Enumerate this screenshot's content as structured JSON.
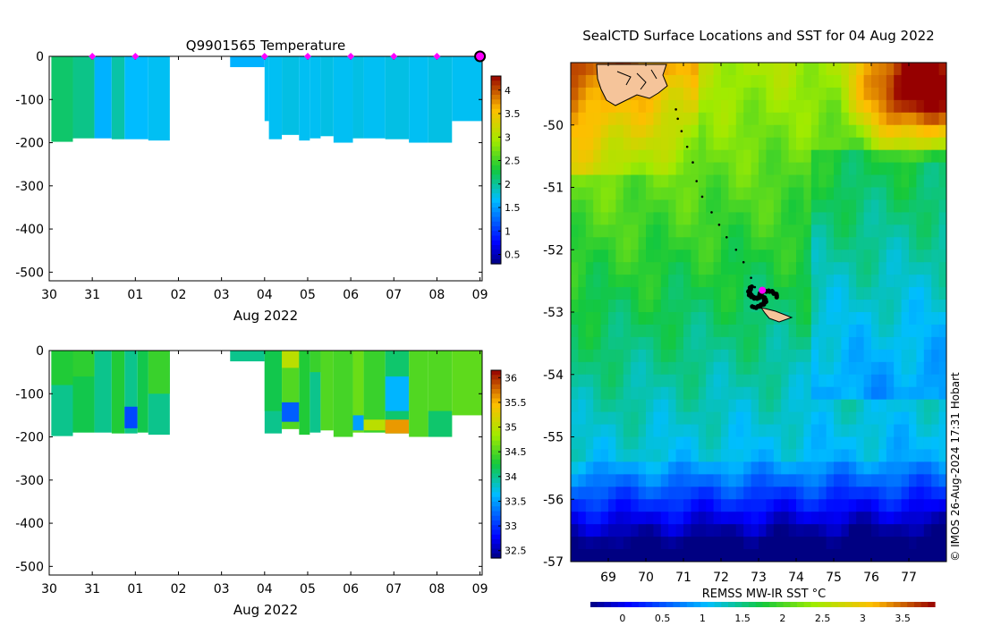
{
  "chart_data": [
    {
      "type": "heatmap",
      "panel": "temperature-profile",
      "title": "Q9901565  Temperature",
      "xlabel": "Aug 2022",
      "ylabel": "",
      "x_ticks": [
        "30",
        "31",
        "01",
        "02",
        "03",
        "04",
        "05",
        "06",
        "07",
        "08",
        "09"
      ],
      "y_ticks": [
        0,
        -100,
        -200,
        -300,
        -400,
        -500
      ],
      "ylim": [
        -520,
        0
      ],
      "xlim_days": [
        0,
        10.05
      ],
      "colorbar": {
        "min": 0.3,
        "max": 4.3,
        "ticks": [
          "0.5",
          "1",
          "1.5",
          "2",
          "2.5",
          "3",
          "3.5",
          "4"
        ],
        "tick_values": [
          0.5,
          1,
          1.5,
          2,
          2.5,
          3,
          3.5,
          4
        ]
      },
      "surface_markers_days": [
        1,
        2,
        5,
        6,
        7,
        8,
        9
      ],
      "current_marker_day": 10,
      "profiles": [
        {
          "x0": 0.05,
          "x1": 0.55,
          "depth": 198,
          "value": 2.15
        },
        {
          "x0": 0.55,
          "x1": 1.05,
          "depth": 190,
          "value": 2.05
        },
        {
          "x0": 1.05,
          "x1": 1.45,
          "depth": 190,
          "value": 1.6
        },
        {
          "x0": 1.45,
          "x1": 1.75,
          "depth": 192,
          "value": 1.95
        },
        {
          "x0": 1.75,
          "x1": 2.3,
          "depth": 192,
          "value": 1.65
        },
        {
          "x0": 2.3,
          "x1": 2.8,
          "depth": 195,
          "value": 1.7
        },
        {
          "x0": 4.2,
          "x1": 5.0,
          "depth": 25,
          "value": 1.6
        },
        {
          "x0": 5.0,
          "x1": 5.1,
          "depth": 150,
          "value": 1.7
        },
        {
          "x0": 5.1,
          "x1": 5.4,
          "depth": 192,
          "value": 1.7
        },
        {
          "x0": 5.4,
          "x1": 5.8,
          "depth": 182,
          "value": 1.75
        },
        {
          "x0": 5.8,
          "x1": 6.05,
          "depth": 195,
          "value": 1.7
        },
        {
          "x0": 6.05,
          "x1": 6.3,
          "depth": 190,
          "value": 1.7
        },
        {
          "x0": 6.3,
          "x1": 6.6,
          "depth": 185,
          "value": 1.75
        },
        {
          "x0": 6.6,
          "x1": 7.05,
          "depth": 200,
          "value": 1.7
        },
        {
          "x0": 7.05,
          "x1": 7.3,
          "depth": 190,
          "value": 1.75
        },
        {
          "x0": 7.3,
          "x1": 7.8,
          "depth": 190,
          "value": 1.7
        },
        {
          "x0": 7.8,
          "x1": 8.35,
          "depth": 192,
          "value": 1.75
        },
        {
          "x0": 8.35,
          "x1": 8.8,
          "depth": 200,
          "value": 1.7
        },
        {
          "x0": 8.8,
          "x1": 9.35,
          "depth": 200,
          "value": 1.75
        },
        {
          "x0": 9.35,
          "x1": 10.05,
          "depth": 150,
          "value": 1.7
        }
      ]
    },
    {
      "type": "heatmap",
      "panel": "salinity-profile",
      "title": "",
      "xlabel": "Aug 2022",
      "ylabel": "",
      "x_ticks": [
        "30",
        "31",
        "01",
        "02",
        "03",
        "04",
        "05",
        "06",
        "07",
        "08",
        "09"
      ],
      "y_ticks": [
        0,
        -100,
        -200,
        -300,
        -400,
        -500
      ],
      "ylim": [
        -520,
        0
      ],
      "xlim_days": [
        0,
        10.05
      ],
      "colorbar": {
        "min": 32.35,
        "max": 36.15,
        "ticks": [
          "32.5",
          "33",
          "33.5",
          "34",
          "34.5",
          "35",
          "35.5",
          "36"
        ],
        "tick_values": [
          32.5,
          33,
          33.5,
          34,
          34.5,
          35,
          35.5,
          36
        ]
      },
      "profiles": [
        {
          "x0": 0.05,
          "x1": 0.55,
          "depth": 198,
          "value": 34.1,
          "layers": [
            {
              "d0": 0,
              "d1": 80,
              "v": 34.3
            },
            {
              "d0": 80,
              "d1": 198,
              "v": 34.0
            }
          ]
        },
        {
          "x0": 0.55,
          "x1": 1.05,
          "depth": 190,
          "value": 34.2,
          "layers": [
            {
              "d0": 0,
              "d1": 60,
              "v": 34.35
            }
          ]
        },
        {
          "x0": 1.05,
          "x1": 1.45,
          "depth": 190,
          "value": 34.0
        },
        {
          "x0": 1.45,
          "x1": 1.75,
          "depth": 192,
          "value": 34.3
        },
        {
          "x0": 1.75,
          "x1": 2.05,
          "depth": 192,
          "value": 34.0,
          "layers": [
            {
              "d0": 130,
              "d1": 180,
              "v": 33.1
            }
          ]
        },
        {
          "x0": 2.05,
          "x1": 2.3,
          "depth": 190,
          "value": 34.2
        },
        {
          "x0": 2.3,
          "x1": 2.8,
          "depth": 195,
          "value": 34.0,
          "layers": [
            {
              "d0": 0,
              "d1": 100,
              "v": 34.4
            }
          ]
        },
        {
          "x0": 4.2,
          "x1": 5.0,
          "depth": 25,
          "value": 34.0
        },
        {
          "x0": 5.0,
          "x1": 5.4,
          "depth": 192,
          "value": 34.0,
          "layers": [
            {
              "d0": 0,
              "d1": 140,
              "v": 34.2
            }
          ]
        },
        {
          "x0": 5.4,
          "x1": 5.8,
          "depth": 182,
          "value": 34.5,
          "layers": [
            {
              "d0": 0,
              "d1": 40,
              "v": 35.0
            },
            {
              "d0": 120,
              "d1": 165,
              "v": 33.2
            }
          ]
        },
        {
          "x0": 5.8,
          "x1": 6.05,
          "depth": 195,
          "value": 34.3
        },
        {
          "x0": 6.05,
          "x1": 6.3,
          "depth": 190,
          "value": 34.0,
          "layers": [
            {
              "d0": 0,
              "d1": 50,
              "v": 34.4
            }
          ]
        },
        {
          "x0": 6.3,
          "x1": 6.6,
          "depth": 185,
          "value": 34.5
        },
        {
          "x0": 6.6,
          "x1": 7.05,
          "depth": 200,
          "value": 34.45
        },
        {
          "x0": 7.05,
          "x1": 7.3,
          "depth": 190,
          "value": 34.6,
          "layers": [
            {
              "d0": 150,
              "d1": 185,
              "v": 33.5
            }
          ]
        },
        {
          "x0": 7.3,
          "x1": 7.8,
          "depth": 190,
          "value": 34.4,
          "layers": [
            {
              "d0": 160,
              "d1": 185,
              "v": 35.0
            }
          ]
        },
        {
          "x0": 7.8,
          "x1": 8.35,
          "depth": 192,
          "value": 34.1,
          "layers": [
            {
              "d0": 60,
              "d1": 140,
              "v": 33.6
            },
            {
              "d0": 160,
              "d1": 192,
              "v": 35.6
            }
          ]
        },
        {
          "x0": 8.35,
          "x1": 8.8,
          "depth": 200,
          "value": 34.5
        },
        {
          "x0": 8.8,
          "x1": 9.35,
          "depth": 200,
          "value": 34.5,
          "layers": [
            {
              "d0": 140,
              "d1": 200,
              "v": 34.1
            }
          ]
        },
        {
          "x0": 9.35,
          "x1": 10.05,
          "depth": 150,
          "value": 34.55
        }
      ]
    },
    {
      "type": "heatmap",
      "panel": "sst-map",
      "title": "SealCTD Surface Locations and SST for 04 Aug 2022",
      "xlabel": "REMSS MW-IR SST °C",
      "ylabel": "",
      "x_ticks": [
        "69",
        "70",
        "71",
        "72",
        "73",
        "74",
        "75",
        "76",
        "77"
      ],
      "x_tick_values": [
        69,
        70,
        71,
        72,
        73,
        74,
        75,
        76,
        77
      ],
      "y_ticks": [
        "-50",
        "-51",
        "-52",
        "-53",
        "-54",
        "-55",
        "-56",
        "-57"
      ],
      "y_tick_values": [
        -50,
        -51,
        -52,
        -53,
        -54,
        -55,
        -56,
        -57
      ],
      "xlim": [
        68,
        78
      ],
      "ylim": [
        -57,
        -49
      ],
      "colorbar": {
        "min": -0.4,
        "max": 3.9,
        "ticks": [
          "0",
          "0.5",
          "1",
          "1.5",
          "2",
          "2.5",
          "3",
          "3.5"
        ],
        "tick_values": [
          0,
          0.5,
          1,
          1.5,
          2,
          2.5,
          3,
          3.5
        ]
      },
      "track_points": [
        {
          "lon": 70.8,
          "lat": -49.75
        },
        {
          "lon": 70.85,
          "lat": -49.9
        },
        {
          "lon": 70.95,
          "lat": -50.1
        },
        {
          "lon": 71.1,
          "lat": -50.35
        },
        {
          "lon": 71.25,
          "lat": -50.6
        },
        {
          "lon": 71.35,
          "lat": -50.9
        },
        {
          "lon": 71.5,
          "lat": -51.15
        },
        {
          "lon": 71.75,
          "lat": -51.4
        },
        {
          "lon": 71.95,
          "lat": -51.6
        },
        {
          "lon": 72.15,
          "lat": -51.8
        },
        {
          "lon": 72.4,
          "lat": -52.0
        },
        {
          "lon": 72.6,
          "lat": -52.2
        },
        {
          "lon": 72.8,
          "lat": -52.45
        },
        {
          "lon": 72.9,
          "lat": -52.6
        }
      ],
      "cluster_center": {
        "lon": 73.05,
        "lat": -52.75
      },
      "current_position": {
        "lon": 73.1,
        "lat": -52.65
      },
      "land": [
        "Kerguelen Islands",
        "Heard Island"
      ],
      "credit": "© IMOS 26-Aug-2024 17:31 Hobart"
    }
  ]
}
